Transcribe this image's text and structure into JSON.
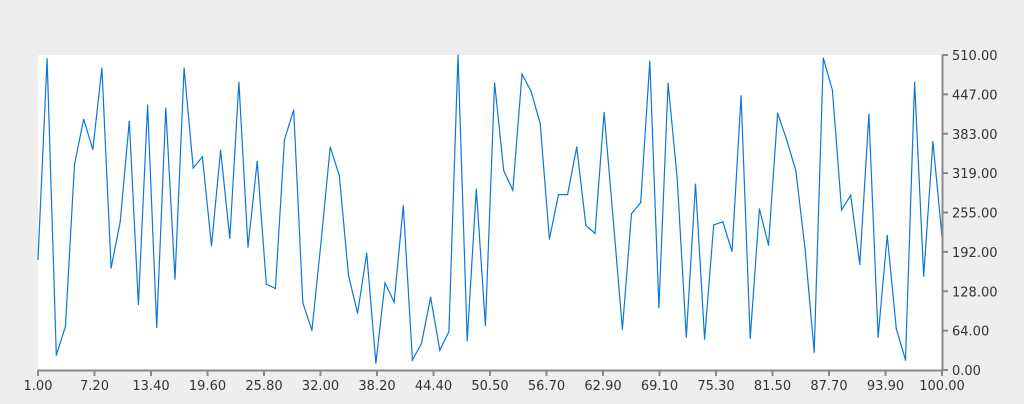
{
  "chart_data": {
    "type": "line",
    "title": "",
    "xlabel": "",
    "ylabel": "",
    "xlim": [
      1,
      100
    ],
    "ylim": [
      0,
      510
    ],
    "grid": false,
    "line_color": "#0a78d8",
    "x_tick_labels": [
      "1.00",
      "7.20",
      "13.40",
      "19.60",
      "25.80",
      "32.00",
      "38.20",
      "44.40",
      "50.50",
      "56.70",
      "62.90",
      "69.10",
      "75.30",
      "81.50",
      "87.70",
      "93.90",
      "100.00"
    ],
    "y_tick_labels": [
      "0.00",
      "64.00",
      "128.00",
      "192.00",
      "255.00",
      "319.00",
      "383.00",
      "447.00",
      "510.00"
    ],
    "y_axis_position": "right",
    "x_start": 1,
    "x_step": 1,
    "values": [
      179,
      504,
      24,
      70,
      333,
      406,
      357,
      489,
      165,
      240,
      403,
      106,
      429,
      69,
      424,
      147,
      489,
      327,
      345,
      201,
      356,
      213,
      466,
      199,
      338,
      139,
      132,
      373,
      421,
      109,
      64,
      208,
      361,
      315,
      153,
      92,
      189,
      11,
      141,
      110,
      266,
      16,
      43,
      118,
      32,
      62,
      510,
      47,
      293,
      72,
      465,
      323,
      291,
      479,
      451,
      399,
      212,
      284,
      284,
      361,
      234,
      221,
      417,
      242,
      66,
      253,
      271,
      500,
      101,
      464,
      310,
      53,
      301,
      50,
      235,
      240,
      192,
      444,
      51,
      261,
      202,
      416,
      372,
      322,
      197,
      29,
      505,
      453,
      259,
      283,
      171,
      414,
      53,
      218,
      67,
      16,
      466,
      152,
      370,
      216
    ]
  }
}
